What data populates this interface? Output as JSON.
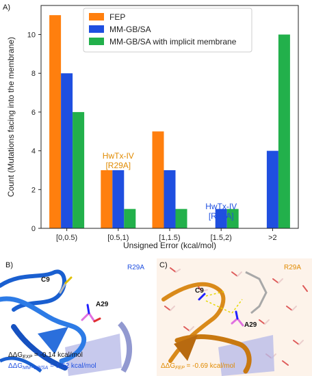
{
  "chart_data": {
    "type": "bar",
    "panel_label": "A)",
    "categories": [
      "[0,0.5)",
      "[0.5,1)",
      "[1,1.5)",
      "[1.5,2)",
      ">2"
    ],
    "series": [
      {
        "name": "FEP",
        "color": "#ff7f0e",
        "values": [
          11,
          3,
          5,
          0,
          0
        ]
      },
      {
        "name": "MM-GB/SA",
        "color": "#1f4fe0",
        "values": [
          8,
          3,
          3,
          1,
          4
        ]
      },
      {
        "name": "MM-GB/SA with implicit membrane",
        "color": "#22b04b",
        "values": [
          6,
          1,
          1,
          1,
          10
        ]
      }
    ],
    "xlabel": "Unsigned Error (kcal/mol)",
    "ylabel": "Count (Mutations facing into the membrane)",
    "ylim": [
      0,
      11.5
    ],
    "yticks": [
      0,
      2,
      4,
      6,
      8,
      10
    ],
    "grid": false,
    "legend_position": "top-center",
    "annotations": [
      {
        "lines": [
          "HwTx-IV",
          "[R29A]"
        ],
        "category": "[0.5,1)",
        "color": "#e08a00"
      },
      {
        "lines": [
          "HwTx-IV",
          "[R29A]"
        ],
        "category": "[1.5,2)",
        "color": "#1f4fe0"
      }
    ]
  },
  "panels": {
    "b": {
      "label": "B)",
      "mutation": "R29A",
      "mutation_color": "#1f4fe0",
      "residue_1": "C9",
      "residue_2": "A29",
      "line1_prefix": "ΔΔG",
      "line1_sub": "EXP",
      "line1_value": " = -0.14 kcal/mol",
      "line1_color": "#111111",
      "line2_prefix": "ΔΔG",
      "line2_sub": "MM−GB/SA",
      "line2_value": " = 1.52 kcal/mol",
      "line2_color": "#1f4fe0"
    },
    "c": {
      "label": "C)",
      "mutation": "R29A",
      "mutation_color": "#e08a00",
      "residue_1": "C9",
      "residue_2": "A29",
      "line1_prefix": "ΔΔG",
      "line1_sub": "FEP",
      "line1_value": " = -0.69 kcal/mol",
      "line1_color": "#e08a00"
    }
  }
}
